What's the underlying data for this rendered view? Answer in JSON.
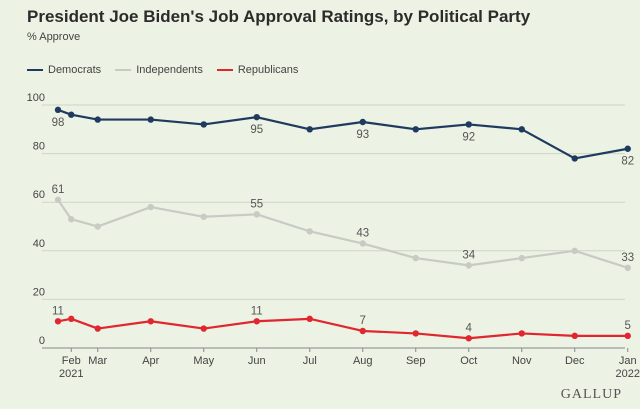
{
  "colors": {
    "background": "#ecf2e4",
    "grid": "#cfd6c6",
    "axis": "#888888",
    "text": "#444444"
  },
  "chart_data": {
    "type": "line",
    "title": "President Joe Biden's Job Approval Ratings, by Political Party",
    "subtitle": "% Approve",
    "xlabel": "",
    "ylabel": "% Approve",
    "ylim": [
      0,
      100
    ],
    "yticks": [
      0,
      20,
      40,
      60,
      80,
      100
    ],
    "grid": true,
    "legend_position": "top-left",
    "x_ticks": [
      {
        "label": "Feb",
        "sublabel": "2021",
        "x": 1.5
      },
      {
        "label": "Mar",
        "x": 2.5
      },
      {
        "label": "Apr",
        "x": 4.5
      },
      {
        "label": "May",
        "x": 6.5
      },
      {
        "label": "Jun",
        "x": 8.5
      },
      {
        "label": "Jul",
        "x": 10.5
      },
      {
        "label": "Aug",
        "x": 12.5
      },
      {
        "label": "Sep",
        "x": 14.5
      },
      {
        "label": "Oct",
        "x": 16.5
      },
      {
        "label": "Nov",
        "x": 18.5
      },
      {
        "label": "Dec",
        "x": 20.5
      },
      {
        "label": "Jan",
        "sublabel": "2022",
        "x": 22.5
      }
    ],
    "x": [
      1,
      1.5,
      2.5,
      4.5,
      6.5,
      8.5,
      10.5,
      12.5,
      14.5,
      16.5,
      18.5,
      20.5,
      22.5
    ],
    "series": [
      {
        "name": "Democrats",
        "color": "#1f3a5f",
        "values": [
          98,
          96,
          94,
          94,
          92,
          95,
          90,
          93,
          90,
          92,
          90,
          78,
          82
        ],
        "labels": [
          {
            "index": 0,
            "text": "98",
            "pos": "below"
          },
          {
            "index": 5,
            "text": "95",
            "pos": "below"
          },
          {
            "index": 7,
            "text": "93",
            "pos": "below"
          },
          {
            "index": 9,
            "text": "92",
            "pos": "below"
          },
          {
            "index": 12,
            "text": "82",
            "pos": "below"
          }
        ]
      },
      {
        "name": "Independents",
        "color": "#c8cbc4",
        "values": [
          61,
          53,
          50,
          58,
          54,
          55,
          48,
          43,
          37,
          34,
          37,
          40,
          33
        ],
        "labels": [
          {
            "index": 0,
            "text": "61",
            "pos": "above"
          },
          {
            "index": 5,
            "text": "55",
            "pos": "above"
          },
          {
            "index": 7,
            "text": "43",
            "pos": "above"
          },
          {
            "index": 9,
            "text": "34",
            "pos": "above"
          },
          {
            "index": 12,
            "text": "33",
            "pos": "above"
          }
        ]
      },
      {
        "name": "Republicans",
        "color": "#e0262e",
        "values": [
          11,
          12,
          8,
          11,
          8,
          11,
          12,
          7,
          6,
          4,
          6,
          5,
          5
        ],
        "labels": [
          {
            "index": 0,
            "text": "11",
            "pos": "above"
          },
          {
            "index": 5,
            "text": "11",
            "pos": "above"
          },
          {
            "index": 7,
            "text": "7",
            "pos": "above"
          },
          {
            "index": 9,
            "text": "4",
            "pos": "above"
          },
          {
            "index": 12,
            "text": "5",
            "pos": "above"
          }
        ]
      }
    ]
  },
  "brand": "GALLUP"
}
